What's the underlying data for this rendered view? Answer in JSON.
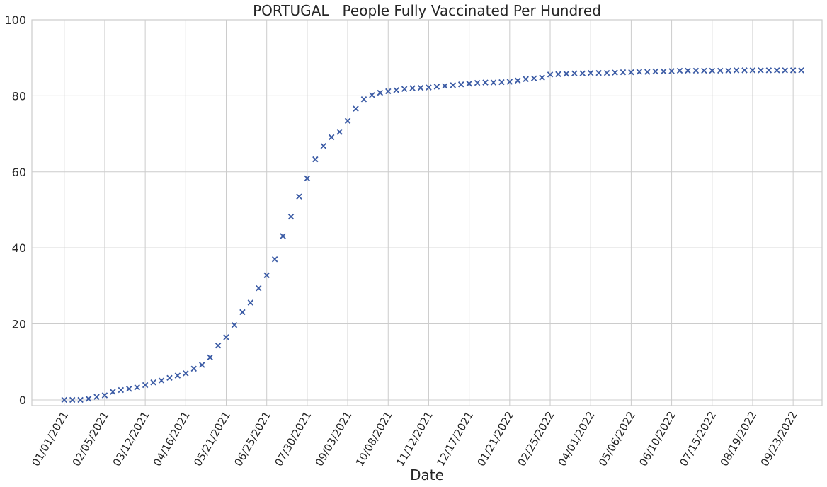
{
  "chart_data": {
    "type": "scatter",
    "title": "PORTUGAL   People Fully Vaccinated Per Hundred",
    "xlabel": "Date",
    "ylabel": "",
    "ylim": [
      -1.5,
      100
    ],
    "yticks": [
      0,
      20,
      40,
      60,
      80,
      100
    ],
    "xticks": [
      "01/01/2021",
      "02/05/2021",
      "03/12/2021",
      "04/16/2021",
      "05/21/2021",
      "06/25/2021",
      "07/30/2021",
      "09/03/2021",
      "10/08/2021",
      "11/12/2021",
      "12/17/2021",
      "01/21/2022",
      "02/25/2022",
      "04/01/2022",
      "05/06/2022",
      "06/10/2022",
      "07/15/2022",
      "08/19/2022",
      "09/23/2022"
    ],
    "xlim": [
      "12/04/2020",
      "10/18/2022"
    ],
    "grid": true,
    "marker": "x",
    "color": "#3b5ba5",
    "x": [
      "01/01/2021",
      "01/08/2021",
      "01/15/2021",
      "01/22/2021",
      "01/29/2021",
      "02/05/2021",
      "02/12/2021",
      "02/19/2021",
      "02/26/2021",
      "03/05/2021",
      "03/12/2021",
      "03/19/2021",
      "03/26/2021",
      "04/02/2021",
      "04/09/2021",
      "04/16/2021",
      "04/23/2021",
      "04/30/2021",
      "05/07/2021",
      "05/14/2021",
      "05/21/2021",
      "05/28/2021",
      "06/04/2021",
      "06/11/2021",
      "06/18/2021",
      "06/25/2021",
      "07/02/2021",
      "07/09/2021",
      "07/16/2021",
      "07/23/2021",
      "07/30/2021",
      "08/06/2021",
      "08/13/2021",
      "08/20/2021",
      "08/27/2021",
      "09/03/2021",
      "09/10/2021",
      "09/17/2021",
      "09/24/2021",
      "10/01/2021",
      "10/08/2021",
      "10/15/2021",
      "10/22/2021",
      "10/29/2021",
      "11/05/2021",
      "11/12/2021",
      "11/19/2021",
      "11/26/2021",
      "12/03/2021",
      "12/10/2021",
      "12/17/2021",
      "12/24/2021",
      "12/31/2021",
      "01/07/2022",
      "01/14/2022",
      "01/21/2022",
      "01/28/2022",
      "02/04/2022",
      "02/11/2022",
      "02/18/2022",
      "02/25/2022",
      "03/04/2022",
      "03/11/2022",
      "03/18/2022",
      "03/25/2022",
      "04/01/2022",
      "04/08/2022",
      "04/15/2022",
      "04/22/2022",
      "04/29/2022",
      "05/06/2022",
      "05/13/2022",
      "05/20/2022",
      "05/27/2022",
      "06/03/2022",
      "06/10/2022",
      "06/17/2022",
      "06/24/2022",
      "07/01/2022",
      "07/08/2022",
      "07/15/2022",
      "07/22/2022",
      "07/29/2022",
      "08/05/2022",
      "08/12/2022",
      "08/19/2022",
      "08/26/2022",
      "09/02/2022",
      "09/09/2022",
      "09/16/2022",
      "09/23/2022",
      "09/30/2022"
    ],
    "y": [
      0.0,
      0.0,
      0.0,
      0.3,
      0.8,
      1.2,
      2.1,
      2.6,
      2.9,
      3.3,
      3.9,
      4.6,
      5.1,
      5.8,
      6.4,
      7.0,
      8.2,
      9.2,
      11.2,
      14.3,
      16.5,
      19.7,
      23.1,
      25.6,
      29.4,
      32.8,
      37.0,
      43.1,
      48.2,
      53.5,
      58.3,
      63.3,
      66.8,
      69.1,
      70.5,
      73.4,
      76.6,
      79.1,
      80.2,
      80.8,
      81.2,
      81.5,
      81.8,
      82.0,
      82.1,
      82.2,
      82.4,
      82.6,
      82.8,
      83.0,
      83.2,
      83.4,
      83.5,
      83.5,
      83.6,
      83.7,
      84.0,
      84.4,
      84.6,
      84.8,
      85.6,
      85.7,
      85.8,
      85.9,
      85.9,
      86.0,
      86.0,
      86.0,
      86.1,
      86.2,
      86.2,
      86.3,
      86.3,
      86.4,
      86.4,
      86.5,
      86.6,
      86.6,
      86.6,
      86.6,
      86.6,
      86.6,
      86.6,
      86.7,
      86.7,
      86.7,
      86.7,
      86.7,
      86.7,
      86.7,
      86.7,
      86.7
    ]
  }
}
